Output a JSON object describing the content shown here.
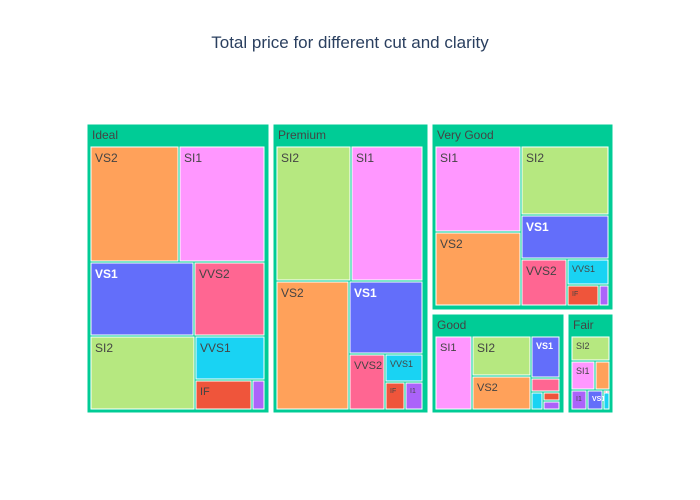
{
  "chart_data": {
    "type": "treemap",
    "title": "Total price for different cut and clarity",
    "parent_color": "#00cc96",
    "clarity_colors": {
      "SI1": "#ff97ff",
      "SI2": "#b6e880",
      "VS1": "#636efa",
      "VS2": "#ffa15a",
      "VVS1": "#19d3f3",
      "VVS2": "#ff6692",
      "IF": "#ef553b",
      "I1": "#ab63fa"
    },
    "groups": [
      {
        "name": "Ideal",
        "children": [
          {
            "name": "VS2",
            "value": 11.5
          },
          {
            "name": "SI1",
            "value": 12.5
          },
          {
            "name": "VS1",
            "value": 9.5
          },
          {
            "name": "VVS2",
            "value": 5.7
          },
          {
            "name": "SI2",
            "value": 9.3
          },
          {
            "name": "VVS1",
            "value": 4.1
          },
          {
            "name": "IF",
            "value": 2.0
          },
          {
            "name": "I1",
            "value": 0.4
          }
        ]
      },
      {
        "name": "Premium",
        "children": [
          {
            "name": "SI2",
            "value": 13.0
          },
          {
            "name": "SI1",
            "value": 13.0
          },
          {
            "name": "VS2",
            "value": 12.6
          },
          {
            "name": "VS1",
            "value": 6.4
          },
          {
            "name": "VVS2",
            "value": 2.2
          },
          {
            "name": "VVS1",
            "value": 1.5
          },
          {
            "name": "IF",
            "value": 0.7
          },
          {
            "name": "I1",
            "value": 0.7
          }
        ]
      },
      {
        "name": "Very Good",
        "children": [
          {
            "name": "SI1",
            "value": 10.5
          },
          {
            "name": "SI2",
            "value": 8.1
          },
          {
            "name": "VS2",
            "value": 10.2
          },
          {
            "name": "VS1",
            "value": 4.5
          },
          {
            "name": "VVS2",
            "value": 2.7
          },
          {
            "name": "VVS1",
            "value": 2.5
          },
          {
            "name": "IF",
            "value": 1.1
          },
          {
            "name": "I1",
            "value": 0.3
          }
        ]
      },
      {
        "name": "Good",
        "children": [
          {
            "name": "SI1",
            "value": 3.6
          },
          {
            "name": "SI2",
            "value": 2.8
          },
          {
            "name": "VS2",
            "value": 2.2
          },
          {
            "name": "VS1",
            "value": 1.2
          },
          {
            "name": "VVS2",
            "value": 0.35
          },
          {
            "name": "VVS1",
            "value": 0.2
          },
          {
            "name": "IF",
            "value": 0.2
          },
          {
            "name": "I1",
            "value": 0.2
          }
        ]
      },
      {
        "name": "Fair",
        "children": [
          {
            "name": "SI2",
            "value": 0.8
          },
          {
            "name": "SI1",
            "value": 0.8
          },
          {
            "name": "VS2",
            "value": 0.6
          },
          {
            "name": "I1",
            "value": 0.3
          },
          {
            "name": "VS1",
            "value": 0.3
          },
          {
            "name": "VVS1",
            "value": 0.1
          },
          {
            "name": "IF",
            "value": 0.05
          },
          {
            "name": "VVS2",
            "value": 0.05
          }
        ]
      }
    ]
  }
}
